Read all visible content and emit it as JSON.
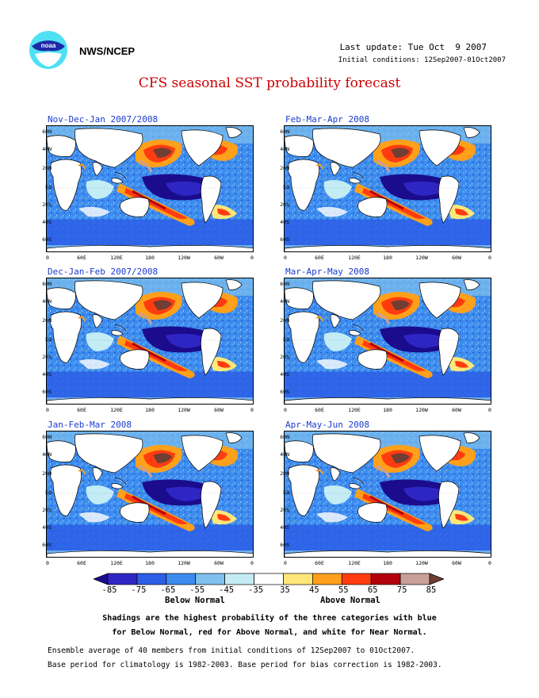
{
  "header": {
    "org_name": "NWS/NCEP",
    "last_update": "Last update: Tue Oct  9 2007",
    "initial_conditions": "Initial conditions: 12Sep2007-01Oct2007",
    "title": "CFS seasonal SST probability forecast"
  },
  "logo": {
    "icon": "noaa-logo",
    "text": "noaa"
  },
  "panels": [
    {
      "title": "Nov-Dec-Jan 2007/2008"
    },
    {
      "title": "Feb-Mar-Apr 2008"
    },
    {
      "title": "Dec-Jan-Feb 2007/2008"
    },
    {
      "title": "Mar-Apr-May 2008"
    },
    {
      "title": "Jan-Feb-Mar 2008"
    },
    {
      "title": "Apr-May-Jun 2008"
    }
  ],
  "axes": {
    "lat_labels": [
      "60N",
      "40N",
      "20N",
      "EQ",
      "20S",
      "40S",
      "60S"
    ],
    "lon_labels": [
      "0",
      "60E",
      "120E",
      "180",
      "120W",
      "60W",
      "0"
    ]
  },
  "colorbar": {
    "labels": [
      "-85",
      "-75",
      "-65",
      "-55",
      "-45",
      "-35",
      "35",
      "45",
      "55",
      "65",
      "75",
      "85"
    ],
    "colors": [
      "#1a0c8c",
      "#2e26c4",
      "#2c5ee6",
      "#3c8cef",
      "#7fc0ee",
      "#c4ecf5",
      "#ffffff",
      "#ffe77a",
      "#ffa01a",
      "#ff3c10",
      "#b4000c",
      "#c8a098",
      "#703e32"
    ],
    "below_label": "Below Normal",
    "above_label": "Above Normal"
  },
  "notes": {
    "line1": "Shadings are the highest probability of the three categories with blue",
    "line2": "for Below Normal, red for Above Normal, and white for Near Normal.",
    "line3": "Ensemble average of 40 members from initial conditions of 12Sep2007 to 01Oct2007.",
    "line4": "Base period for climatology is 1982-2003. Base period for bias correction is 1982-2003."
  }
}
